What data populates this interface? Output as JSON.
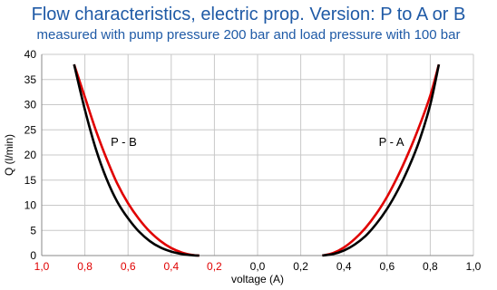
{
  "chart_data": {
    "type": "line",
    "title": "Flow characteristics, electric prop. Version: P to A or B",
    "subtitle": "measured with pump pressure 200 bar and load pressure with 100 bar",
    "xlabel": "voltage (A)",
    "ylabel": "Q (l/min)",
    "xlim": [
      -1.0,
      1.0
    ],
    "ylim": [
      0,
      40
    ],
    "x_tick_labels": [
      "1,0",
      "0,8",
      "0,6",
      "0,4",
      "0,2",
      "0,0",
      "0,2",
      "0,4",
      "0,6",
      "0,8",
      "1,0"
    ],
    "x_tick_label_colors": [
      "#e00000",
      "#e00000",
      "#e00000",
      "#e00000",
      "#e00000",
      "#000000",
      "#000000",
      "#000000",
      "#000000",
      "#000000",
      "#000000"
    ],
    "y_ticks": [
      0,
      5,
      10,
      15,
      20,
      25,
      30,
      35,
      40
    ],
    "grid": true,
    "annotations": [
      {
        "text": "P - B",
        "x": -0.62,
        "y": 22.5
      },
      {
        "text": "P - A",
        "x": 0.62,
        "y": 22.5
      }
    ],
    "series": [
      {
        "color": "#e00000",
        "x": [
          -0.85,
          -0.8,
          -0.75,
          -0.7,
          -0.65,
          -0.6,
          -0.55,
          -0.5,
          -0.45,
          -0.4,
          -0.35,
          -0.3,
          -0.27
        ],
        "y": [
          38,
          31.5,
          25,
          19.3,
          14.3,
          10.4,
          7.3,
          4.8,
          2.9,
          1.5,
          0.6,
          0.1,
          0
        ]
      },
      {
        "color": "#000000",
        "x": [
          -0.85,
          -0.8,
          -0.75,
          -0.7,
          -0.65,
          -0.6,
          -0.55,
          -0.5,
          -0.45,
          -0.4,
          -0.35,
          -0.3,
          -0.27
        ],
        "y": [
          38,
          29,
          21.3,
          15.3,
          10.7,
          7.4,
          4.8,
          2.9,
          1.6,
          0.8,
          0.3,
          0.05,
          0
        ]
      },
      {
        "color": "#e00000",
        "x": [
          0.3,
          0.35,
          0.4,
          0.45,
          0.5,
          0.55,
          0.6,
          0.65,
          0.7,
          0.75,
          0.8,
          0.84
        ],
        "y": [
          0,
          0.5,
          1.6,
          3.3,
          5.5,
          8.3,
          11.7,
          15.8,
          20.5,
          25.8,
          31.8,
          38
        ]
      },
      {
        "color": "#000000",
        "x": [
          0.3,
          0.35,
          0.4,
          0.45,
          0.5,
          0.55,
          0.6,
          0.65,
          0.7,
          0.75,
          0.8,
          0.84
        ],
        "y": [
          0,
          0.3,
          1.0,
          2.2,
          3.9,
          6.3,
          9.3,
          13.0,
          17.5,
          22.9,
          30.0,
          38
        ]
      }
    ]
  }
}
